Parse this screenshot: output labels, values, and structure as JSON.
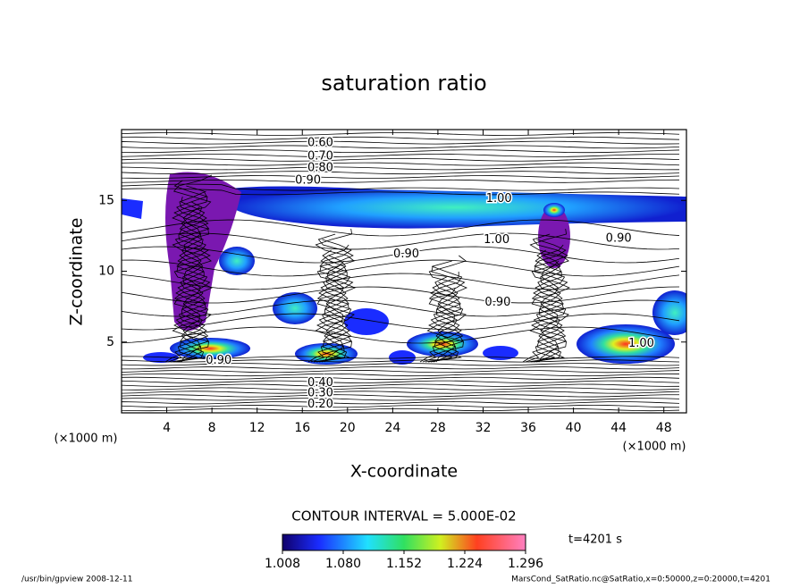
{
  "chart_data": {
    "type": "contour",
    "title": "saturation ratio",
    "x_label": "X-coordinate",
    "y_label": "Z-coordinate",
    "x_unit": "(×1000 m)",
    "y_unit": "(×1000 m)",
    "xlim": [
      0,
      50
    ],
    "xticks": [
      4,
      8,
      12,
      16,
      20,
      24,
      28,
      32,
      36,
      40,
      44,
      48
    ],
    "ylim": [
      0,
      20
    ],
    "yticks": [
      5,
      10,
      15
    ],
    "contour_labels": [
      {
        "text": "0.60",
        "x": 17.6,
        "y": 19.05
      },
      {
        "text": "0.70",
        "x": 17.6,
        "y": 18.1
      },
      {
        "text": "0.80",
        "x": 17.6,
        "y": 17.3
      },
      {
        "text": "0.90",
        "x": 16.5,
        "y": 16.4
      },
      {
        "text": "1.00",
        "x": 33.4,
        "y": 15.1
      },
      {
        "text": "1.00",
        "x": 33.2,
        "y": 12.2
      },
      {
        "text": "0.90",
        "x": 44,
        "y": 12.3
      },
      {
        "text": "0.90",
        "x": 25.2,
        "y": 11.2
      },
      {
        "text": "0.90",
        "x": 33.3,
        "y": 7.8
      },
      {
        "text": "1.00",
        "x": 46,
        "y": 4.9
      },
      {
        "text": "0.90",
        "x": 8.6,
        "y": 3.7
      },
      {
        "text": "0.40",
        "x": 17.6,
        "y": 2.1
      },
      {
        "text": "0.30",
        "x": 17.6,
        "y": 1.4
      },
      {
        "text": "0.20",
        "x": 17.6,
        "y": 0.6
      }
    ],
    "contour_interval": "CONTOUR INTERVAL = 5.000E-02",
    "colorbar": {
      "clim": [
        1.008,
        1.296
      ],
      "ticks": [
        1.008,
        1.08,
        1.152,
        1.224,
        1.296
      ],
      "tick_labels": [
        "1.008",
        "1.080",
        "1.152",
        "1.224",
        "1.296"
      ]
    },
    "time_label": "t=4201 s",
    "footer_left": "/usr/bin/gpview   2008-12-11",
    "footer_right": "MarsCond_SatRatio.nc@SatRatio,x=0:50000,z=0:20000,t=4201"
  }
}
